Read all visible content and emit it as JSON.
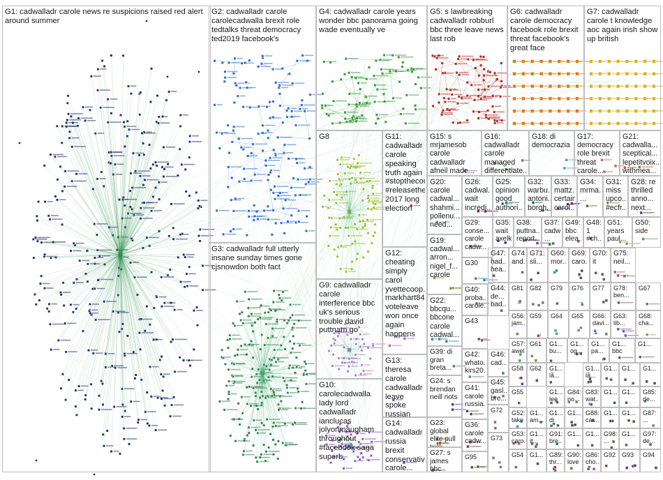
{
  "groups": [
    {
      "id": "G1",
      "label": "G1: cadwalladr carole news re suspicions raised red alert around summer",
      "color": "#1f2a6b",
      "shape": "ellipse"
    },
    {
      "id": "G2",
      "label": "G2: cadwalladr carole carolecadwalla brexit role tedtalks threat democracy ted2019 facebook's",
      "color": "#2f6fcf",
      "shape": "cluster"
    },
    {
      "id": "G3",
      "label": "G3: cadwalladr full utterly insane sunday times gone cjsnowdon both fact",
      "color": "#2e7d48",
      "shape": "ellipse"
    },
    {
      "id": "G4",
      "label": "G4: cadwalladr carole years wonder bbc panorama going wade eventually ve",
      "color": "#3a9b3a",
      "shape": "cluster"
    },
    {
      "id": "G5",
      "label": "G5: s lawbreaking cadwalladr robburl bbc three leave news last rob",
      "color": "#b22a2a",
      "shape": "cluster"
    },
    {
      "id": "G6",
      "label": "G6: cadwalladr carole democracy facebook role brexit threat facebook's great face",
      "color": "#e07b1a",
      "shape": "grid"
    },
    {
      "id": "G7",
      "label": "G7: cadwalladr carole t knowledge aoc again irish show up british",
      "color": "#e0b020",
      "shape": "grid"
    },
    {
      "id": "G8",
      "label": "G8",
      "color": "#9fbf2a",
      "shape": "ellipse"
    },
    {
      "id": "G9",
      "label": "G9: cadwalladr carole interference bbc uk's serious trouble david puttnam go",
      "color": "#b07ad0",
      "shape": "ellipse"
    },
    {
      "id": "G10",
      "label": "G10: carolecadwalla lady lord cadwalladr ianclucas jolyonmaugham throughout #facebook saga superb",
      "color": "#8a4fc0",
      "shape": "ellipse"
    },
    {
      "id": "G11",
      "label": "G11: cadwalladr carole speaking truth again #stopthecoup #releasethe... 2017 long election",
      "color": "#7a3fa0",
      "shape": "few"
    },
    {
      "id": "G12",
      "label": "G12: cheating simply carol yvettecoop... markhart84 voteleave won once again happens",
      "color": "#9a7abf",
      "shape": "few"
    },
    {
      "id": "G13",
      "label": "G13: theresa carole cadwalladr leave spoke russian interference",
      "color": "#6a6abf",
      "shape": "few"
    },
    {
      "id": "G14",
      "label": "G14: cadwalladr russia brexit conservative carole...",
      "color": "#4a4aa0",
      "shape": "few"
    },
    {
      "id": "G15",
      "label": "G15: s mrjamesob carole cadwalladr afneil made...",
      "color": "#b05ab0",
      "shape": "few"
    },
    {
      "id": "G16",
      "label": "G16: cadwalladr carole managed differentiate...",
      "color": "#5a8a5a",
      "shape": "few"
    },
    {
      "id": "G17",
      "label": "G17: democracy role brexit threat carole...",
      "color": "#c06a6a",
      "shape": "few"
    },
    {
      "id": "G18",
      "label": "G18: di democrazia",
      "color": "#5aa0c0",
      "shape": "few"
    },
    {
      "id": "G19",
      "label": "G19: cadwal... arron... nigel_f... carole",
      "color": "#7a9a3a",
      "shape": "few"
    },
    {
      "id": "G20",
      "label": "G20: carole cadwal... shahmi... pollenu... need...",
      "color": "#6a7ab0",
      "shape": "few"
    },
    {
      "id": "G21",
      "label": "G21: cadwalla... sceptical... lepetitvoix... withmea...",
      "color": "#a06a3a",
      "shape": "few"
    },
    {
      "id": "G22",
      "label": "G22: bbcqu... bbcone carole cadwal...",
      "color": "#3a8aa0",
      "shape": "few"
    },
    {
      "id": "G23",
      "label": "G23: global elite pull trick",
      "color": "#8a5a2a",
      "shape": "few"
    },
    {
      "id": "G24",
      "label": "G24: s brendan neill riots",
      "color": "#5a3a8a",
      "shape": "few"
    },
    {
      "id": "G25",
      "label": "G25: opinion good authori...",
      "color": "#2a7a7a",
      "shape": "few"
    },
    {
      "id": "G26",
      "label": "G26: cadwal... wait incredi...",
      "color": "#7a2a5a",
      "shape": "few"
    },
    {
      "id": "G27",
      "label": "G27: s james bbc intellig...",
      "color": "#4a6a2a",
      "shape": "few"
    },
    {
      "id": "G28",
      "label": "G28: re thrilled anno... next...",
      "color": "#2a4a7a",
      "shape": "few"
    },
    {
      "id": "G29",
      "label": "G29: conse... carole cadw...",
      "color": "#6a2a2a",
      "shape": "few"
    },
    {
      "id": "G30",
      "label": "G30",
      "color": "#2a8ad0",
      "shape": "few"
    },
    {
      "id": "G31",
      "label": "G31: miss upco... #ecfr...",
      "color": "#8a8a2a",
      "shape": "few"
    },
    {
      "id": "G32",
      "label": "G32: warbu... antoni... borgh...",
      "color": "#2a6a4a",
      "shape": "few"
    },
    {
      "id": "G33",
      "label": "G33: mattz... certain carol...",
      "color": "#5a2a7a",
      "shape": "few"
    },
    {
      "id": "G34",
      "label": "G34: mrma... ...",
      "color": "#7a5a2a",
      "shape": "few"
    },
    {
      "id": "G35",
      "label": "G35: wait axelk...",
      "color": "#3a3a8a",
      "shape": "few"
    },
    {
      "id": "G36",
      "label": "G36: carole cadw...",
      "color": "#8a3a3a",
      "shape": "few"
    },
    {
      "id": "G37",
      "label": "G37: cadw... ...",
      "color": "#3a7a3a",
      "shape": "few"
    },
    {
      "id": "G38",
      "label": "G38: puttna... report...",
      "color": "#6a4a8a",
      "shape": "few"
    },
    {
      "id": "G39",
      "label": "G39: di gran breta...",
      "color": "#4a8a6a",
      "shape": "few"
    },
    {
      "id": "G40",
      "label": "G40: proba... carole...",
      "color": "#8a6a4a",
      "shape": "few"
    },
    {
      "id": "G41",
      "label": "G41: carole russia...",
      "color": "#4a4a6a",
      "shape": "few"
    },
    {
      "id": "G42",
      "label": "G42: whato... kirs20...",
      "color": "#6a8a8a",
      "shape": "few"
    },
    {
      "id": "G43",
      "label": "G43",
      "color": "#8a4a6a",
      "shape": "few"
    },
    {
      "id": "G44",
      "label": "G44: de... bad...",
      "color": "#4a6a8a",
      "shape": "few"
    },
    {
      "id": "G45",
      "label": "G45: gasl... bre...",
      "color": "#7a7a4a",
      "shape": "few"
    },
    {
      "id": "G46",
      "label": "G46: cad...",
      "color": "#4a7a7a",
      "shape": "few"
    },
    {
      "id": "G47",
      "label": "G47: had... hea...",
      "color": "#7a4a4a",
      "shape": "few"
    },
    {
      "id": "G48",
      "label": "G48: 1 #ch...",
      "color": "#5a5a9a",
      "shape": "few"
    },
    {
      "id": "G49",
      "label": "G49: bbc elea...",
      "color": "#9a5a5a",
      "shape": "few"
    },
    {
      "id": "G50",
      "label": "G50: side",
      "color": "#5a9a5a",
      "shape": "few"
    },
    {
      "id": "G51",
      "label": "G51: years paul...",
      "color": "#9a9a5a",
      "shape": "few"
    },
    {
      "id": "G52",
      "label": "G52: take",
      "color": "#5a9a9a",
      "shape": "few"
    },
    {
      "id": "G53",
      "label": "G53: caro...",
      "color": "#9a5a9a",
      "shape": "few"
    },
    {
      "id": "G54",
      "label": "G54",
      "color": "#6a6a6a",
      "shape": "few"
    },
    {
      "id": "G55",
      "label": "G55",
      "color": "#3a6aaa",
      "shape": "few"
    },
    {
      "id": "G56",
      "label": "G56: jam...",
      "color": "#aa6a3a",
      "shape": "few"
    },
    {
      "id": "G57",
      "label": "G57: awel...",
      "color": "#3aaa6a",
      "shape": "few"
    },
    {
      "id": "G58",
      "label": "G58",
      "color": "#6a3aaa",
      "shape": "few"
    },
    {
      "id": "G59",
      "label": "G59",
      "color": "#aa3a6a",
      "shape": "few"
    },
    {
      "id": "G60",
      "label": "G60: mor...",
      "color": "#3a8a8a",
      "shape": "few"
    },
    {
      "id": "G61",
      "label": "G61",
      "color": "#8a8a3a",
      "shape": "few"
    },
    {
      "id": "G62",
      "label": "G62",
      "color": "#5a5a5a",
      "shape": "few"
    },
    {
      "id": "G63",
      "label": "G63: lib...",
      "color": "#7a5aaa",
      "shape": "few"
    },
    {
      "id": "G64",
      "label": "G64",
      "color": "#5aaa7a",
      "shape": "few"
    },
    {
      "id": "G65",
      "label": "G65",
      "color": "#aa7a5a",
      "shape": "few"
    },
    {
      "id": "G66",
      "label": "G66: davi...",
      "color": "#5a7aaa",
      "shape": "few"
    },
    {
      "id": "G67",
      "label": "G67",
      "color": "#aa5a7a",
      "shape": "few"
    },
    {
      "id": "G68",
      "label": "G68: cha...",
      "color": "#7aaa5a",
      "shape": "few"
    },
    {
      "id": "G69",
      "label": "G69: caro...",
      "color": "#6a4a4a",
      "shape": "few"
    },
    {
      "id": "G70",
      "label": "G70: it",
      "color": "#4a6a4a",
      "shape": "few"
    },
    {
      "id": "G71",
      "label": "G71: sli...",
      "color": "#4a4a6a",
      "shape": "few"
    },
    {
      "id": "G72",
      "label": "G72",
      "color": "#8a6a6a",
      "shape": "few"
    },
    {
      "id": "G73",
      "label": "G73",
      "color": "#6a8a6a",
      "shape": "few"
    },
    {
      "id": "G74",
      "label": "G74: and...",
      "color": "#6a6a8a",
      "shape": "few"
    },
    {
      "id": "G75",
      "label": "G75: neil...",
      "color": "#9a6a4a",
      "shape": "few"
    },
    {
      "id": "G76",
      "label": "G76",
      "color": "#4a9a6a",
      "shape": "few"
    },
    {
      "id": "G77",
      "label": "G77",
      "color": "#6a4a9a",
      "shape": "few"
    },
    {
      "id": "G78",
      "label": "G78: ben...",
      "color": "#9a4a6a",
      "shape": "few"
    },
    {
      "id": "G79",
      "label": "G79",
      "color": "#4a6a9a",
      "shape": "few"
    },
    {
      "id": "G80",
      "label": "G80",
      "color": "#6a9a4a",
      "shape": "few"
    },
    {
      "id": "G81",
      "label": "G81",
      "color": "#8a5a5a",
      "shape": "few"
    },
    {
      "id": "G82",
      "label": "G82",
      "color": "#5a8a5a",
      "shape": "few"
    },
    {
      "id": "G83",
      "label": "G83: wat...",
      "color": "#5a5a8a",
      "shape": "few"
    },
    {
      "id": "G84",
      "label": "G84: no...",
      "color": "#8a8a5a",
      "shape": "few"
    },
    {
      "id": "G85",
      "label": "G85: de...",
      "color": "#5a8a8a",
      "shape": "few"
    },
    {
      "id": "G86",
      "label": "G86: cho...",
      "color": "#8a5a8a",
      "shape": "few"
    },
    {
      "id": "G87",
      "label": "G87: ...",
      "color": "#7a7a7a",
      "shape": "few"
    },
    {
      "id": "G88",
      "label": "G88: car...",
      "color": "#3a5a7a",
      "shape": "few"
    },
    {
      "id": "G89",
      "label": "G89: thr...",
      "color": "#7a3a5a",
      "shape": "few"
    },
    {
      "id": "G90",
      "label": "G90: love",
      "color": "#5a7a3a",
      "shape": "few"
    },
    {
      "id": "G91",
      "label": "G91: bre...",
      "color": "#3a7a5a",
      "shape": "few"
    },
    {
      "id": "G92",
      "label": "G92",
      "color": "#7a5a3a",
      "shape": "few"
    },
    {
      "id": "G93",
      "label": "G93",
      "color": "#5a3a7a",
      "shape": "few"
    },
    {
      "id": "G94",
      "label": "G94",
      "color": "#3a5a5a",
      "shape": "few"
    },
    {
      "id": "G95",
      "label": "G95",
      "color": "#5a5a3a",
      "shape": "few"
    },
    {
      "id": "G96",
      "label": "G96: de...",
      "color": "#4a5a6a",
      "shape": "few"
    },
    {
      "id": "G97",
      "label": "G97: de...",
      "color": "#6a5a4a",
      "shape": "few"
    },
    {
      "id": "G98",
      "label": "G98: ...",
      "color": "#5a6a4a",
      "shape": "few"
    },
    {
      "id": "G99",
      "label": "G99: la...",
      "color": "#4a6a5a",
      "shape": "few"
    },
    {
      "id": "G100",
      "label": "G1... bu...",
      "color": "#6a4a5a",
      "shape": "few"
    },
    {
      "id": "G101",
      "label": "G1... og...",
      "color": "#5a4a6a",
      "shape": "few"
    },
    {
      "id": "G102",
      "label": "G1... pa...",
      "color": "#4a5a4a",
      "shape": "few"
    },
    {
      "id": "G103",
      "label": "G1... bbc",
      "color": "#6a5a6a",
      "shape": "few"
    },
    {
      "id": "G104",
      "label": "G1... lee",
      "color": "#5a6a5a",
      "shape": "few"
    },
    {
      "id": "G105",
      "label": "G1... am...",
      "color": "#6a6a5a",
      "shape": "few"
    },
    {
      "id": "G106",
      "label": "G1... di",
      "color": "#5a6a6a",
      "shape": "few"
    },
    {
      "id": "G107",
      "label": "G1... it...",
      "color": "#6a5a5a",
      "shape": "few"
    },
    {
      "id": "G108",
      "label": "G1... lå...",
      "color": "#5a5a6a",
      "shape": "few"
    },
    {
      "id": "G109",
      "label": "G1... lå...",
      "color": "#4a4a4a",
      "shape": "few"
    },
    {
      "id": "G110",
      "label": "G1...",
      "color": "#6a6a4a",
      "shape": "few"
    },
    {
      "id": "G111",
      "label": "G1...",
      "color": "#4a6a6a",
      "shape": "few"
    },
    {
      "id": "G112",
      "label": "G1...",
      "color": "#6a4a6a",
      "shape": "few"
    },
    {
      "id": "G113",
      "label": "G1...",
      "color": "#5a4a4a",
      "shape": "few"
    },
    {
      "id": "G114",
      "label": "G1...",
      "color": "#4a5a5a",
      "shape": "few"
    },
    {
      "id": "G115",
      "label": "G1...",
      "color": "#5a5a4a",
      "shape": "few"
    },
    {
      "id": "G116",
      "label": "G1...",
      "color": "#4a4a5a",
      "shape": "few"
    },
    {
      "id": "G117",
      "label": "G1...",
      "color": "#5a4a5a",
      "shape": "few"
    },
    {
      "id": "G118",
      "label": "G1...",
      "color": "#4a5a4a",
      "shape": "few"
    },
    {
      "id": "G119",
      "label": "G1...",
      "color": "#6a5a4a",
      "shape": "few"
    },
    {
      "id": "G120",
      "label": "G1...",
      "color": "#4a6a4a",
      "shape": "few"
    },
    {
      "id": "G121",
      "label": "G1...",
      "color": "#5a6a4a",
      "shape": "few"
    },
    {
      "id": "G122",
      "label": "G1...",
      "color": "#4a4a6a",
      "shape": "few"
    }
  ],
  "colors": {
    "edge": "#4caf7a",
    "border": "#bdbdbd",
    "background": "#ffffff",
    "label": "#1a1a1a"
  }
}
